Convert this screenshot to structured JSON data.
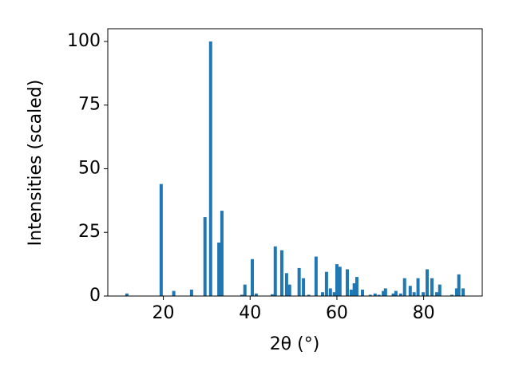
{
  "chart_data": {
    "type": "bar",
    "xlabel": "2θ (°)",
    "ylabel": "Intensities (scaled)",
    "color": "#1f77b4",
    "x": [
      11.6,
      19.5,
      22.4,
      26.5,
      29.6,
      30.9,
      32.8,
      33.5,
      38.1,
      38.8,
      40.5,
      41.4,
      45.1,
      45.8,
      47.3,
      48.4,
      49.1,
      51.3,
      52.3,
      53.5,
      55.2,
      56.7,
      57.6,
      58.5,
      59.4,
      60.0,
      60.7,
      62.4,
      63.3,
      64.0,
      64.6,
      65.9,
      67.7,
      68.8,
      69.7,
      70.7,
      71.2,
      73.0,
      73.6,
      74.7,
      75.6,
      76.9,
      77.8,
      78.7,
      79.9,
      80.8,
      81.9,
      83.0,
      83.7,
      86.5,
      87.6,
      88.1,
      89.1
    ],
    "values": [
      1,
      44,
      2,
      2.5,
      31,
      100,
      21,
      33.5,
      0.5,
      4.5,
      14.5,
      1,
      0.7,
      19.5,
      18,
      9,
      4.5,
      11,
      7,
      0.5,
      15.5,
      1.5,
      9.5,
      3,
      1.5,
      12.5,
      11.5,
      10.5,
      2.5,
      5,
      7.5,
      2.5,
      0.5,
      1,
      0.5,
      2,
      3,
      1,
      2,
      1,
      7,
      4,
      1.5,
      7,
      1.5,
      10.5,
      7,
      1.5,
      4.5,
      0.5,
      3,
      8.5,
      3
    ],
    "xlim": [
      7.2,
      93.5
    ],
    "ylim": [
      0,
      105
    ],
    "xticks": [
      20,
      40,
      60,
      80
    ],
    "yticks": [
      0,
      25,
      50,
      75,
      100
    ]
  }
}
